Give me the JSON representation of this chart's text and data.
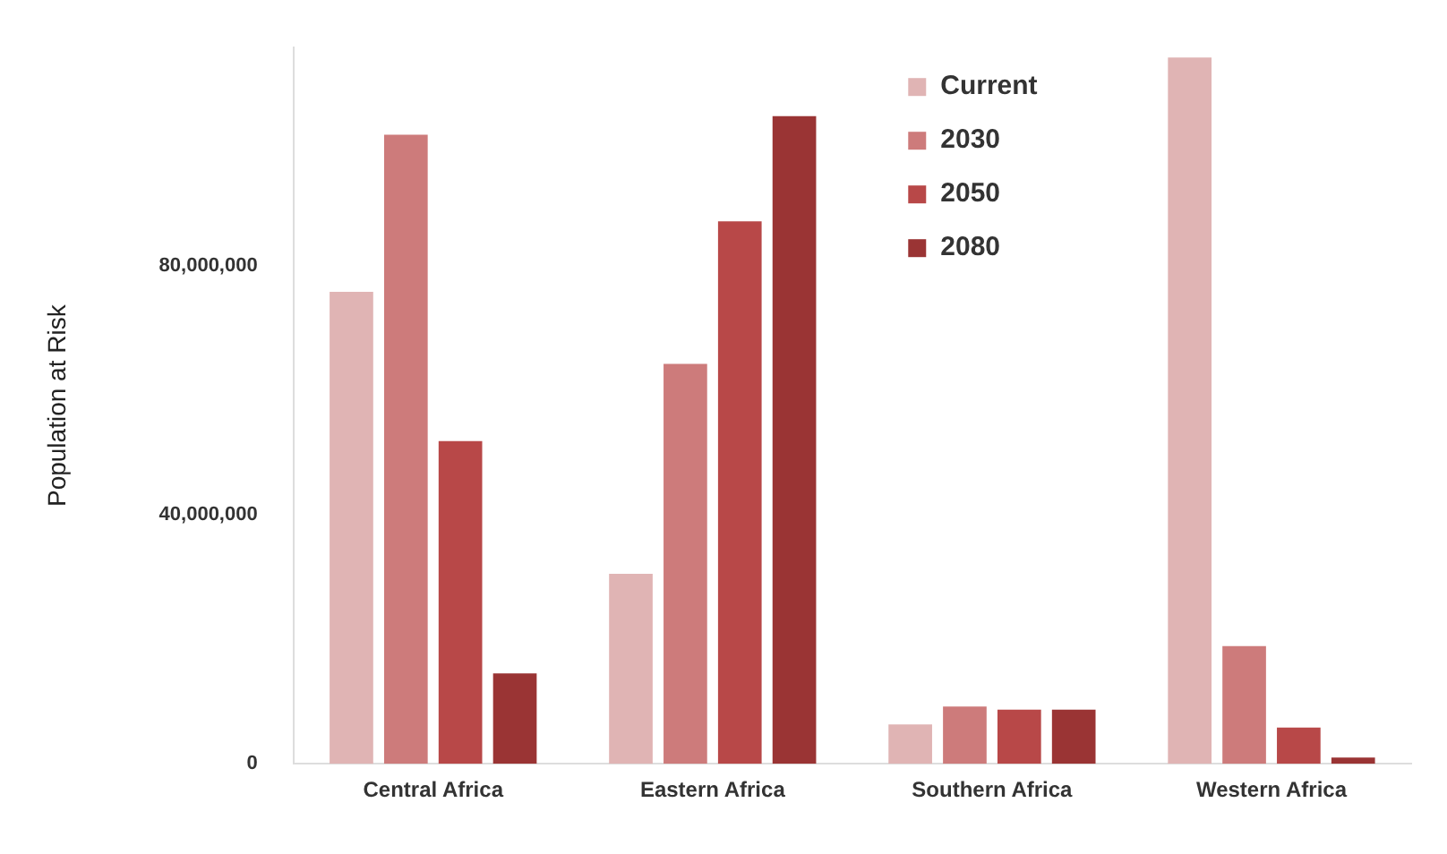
{
  "chart_data": {
    "type": "bar",
    "ylabel": "Population at Risk",
    "categories": [
      "Central Africa",
      "Eastern Africa",
      "Southern Africa",
      "Western Africa"
    ],
    "series": [
      {
        "name": "Current",
        "color": "#e0b4b4",
        "values": [
          75800000,
          30500000,
          6300000,
          113400000
        ]
      },
      {
        "name": "2030",
        "color": "#cd7b7b",
        "values": [
          101000000,
          64200000,
          9200000,
          18900000
        ]
      },
      {
        "name": "2050",
        "color": "#b84848",
        "values": [
          51800000,
          87100000,
          8700000,
          5800000
        ]
      },
      {
        "name": "2080",
        "color": "#9a3434",
        "values": [
          14500000,
          104000000,
          8700000,
          1000000
        ]
      }
    ],
    "ylim": [
      0,
      115000000
    ],
    "yticks": [
      {
        "value": 0,
        "label": "0"
      },
      {
        "value": 40000000,
        "label": "40,000,000"
      },
      {
        "value": 80000000,
        "label": "80,000,000"
      }
    ],
    "grid": false,
    "legend": "top"
  }
}
